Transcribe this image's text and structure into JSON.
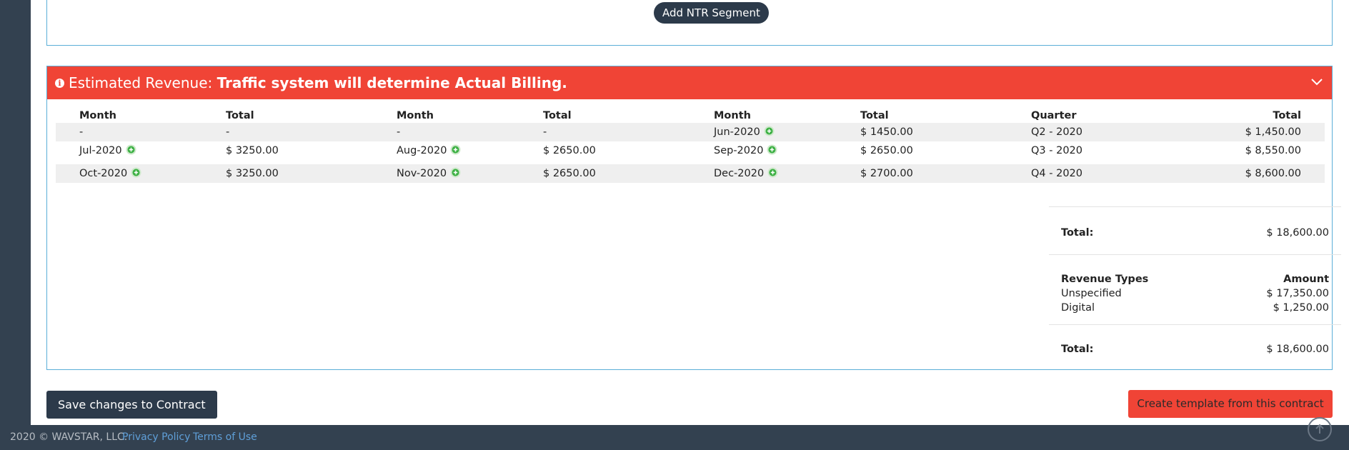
{
  "ntr": {
    "add_label": "Add NTR Segment"
  },
  "revenue": {
    "prefix": "Estimated Revenue:",
    "emphasis": "Traffic system will determine Actual Billing.",
    "icon": "info-circle-icon",
    "collapse_icon": "chevron-down-icon",
    "columns": [
      "Month",
      "Total",
      "Month",
      "Total",
      "Month",
      "Total",
      "Quarter",
      "Total"
    ],
    "rows": [
      {
        "m1": "-",
        "t1": "-",
        "m2": "-",
        "t2": "-",
        "m3": "Jun-2020",
        "t3": "$ 1450.00",
        "q": "Q2 - 2020",
        "qt": "$ 1,450.00"
      },
      {
        "m1": "Jul-2020",
        "t1": "$ 3250.00",
        "m2": "Aug-2020",
        "t2": "$ 2650.00",
        "m3": "Sep-2020",
        "t3": "$ 2650.00",
        "q": "Q3 - 2020",
        "qt": "$ 8,550.00"
      },
      {
        "m1": "Oct-2020",
        "t1": "$ 3250.00",
        "m2": "Nov-2020",
        "t2": "$ 2650.00",
        "m3": "Dec-2020",
        "t3": "$ 2700.00",
        "q": "Q4 - 2020",
        "qt": "$ 8,600.00"
      }
    ],
    "summary": {
      "total_label": "Total:",
      "total_value": "$ 18,600.00",
      "types_label": "Revenue Types",
      "amount_label": "Amount",
      "types": [
        {
          "name": "Unspecified",
          "amount": "$ 17,350.00"
        },
        {
          "name": "Digital",
          "amount": "$ 1,250.00"
        }
      ],
      "grand_total_label": "Total:",
      "grand_total_value": "$ 18,600.00"
    }
  },
  "actions": {
    "save_label": "Save changes to Contract",
    "template_label": "Create template from this contract"
  },
  "footer": {
    "copyright": "2020 © WAVSTAR, LLC.",
    "privacy": "Privacy Policy",
    "terms": "Terms of Use",
    "scroll_icon": "arrow-up-icon"
  },
  "colors": {
    "header_red": "#f04436",
    "dark_navy": "#2c3a4a",
    "panel_border": "#5aaed8",
    "add_green": "#3cb043"
  }
}
